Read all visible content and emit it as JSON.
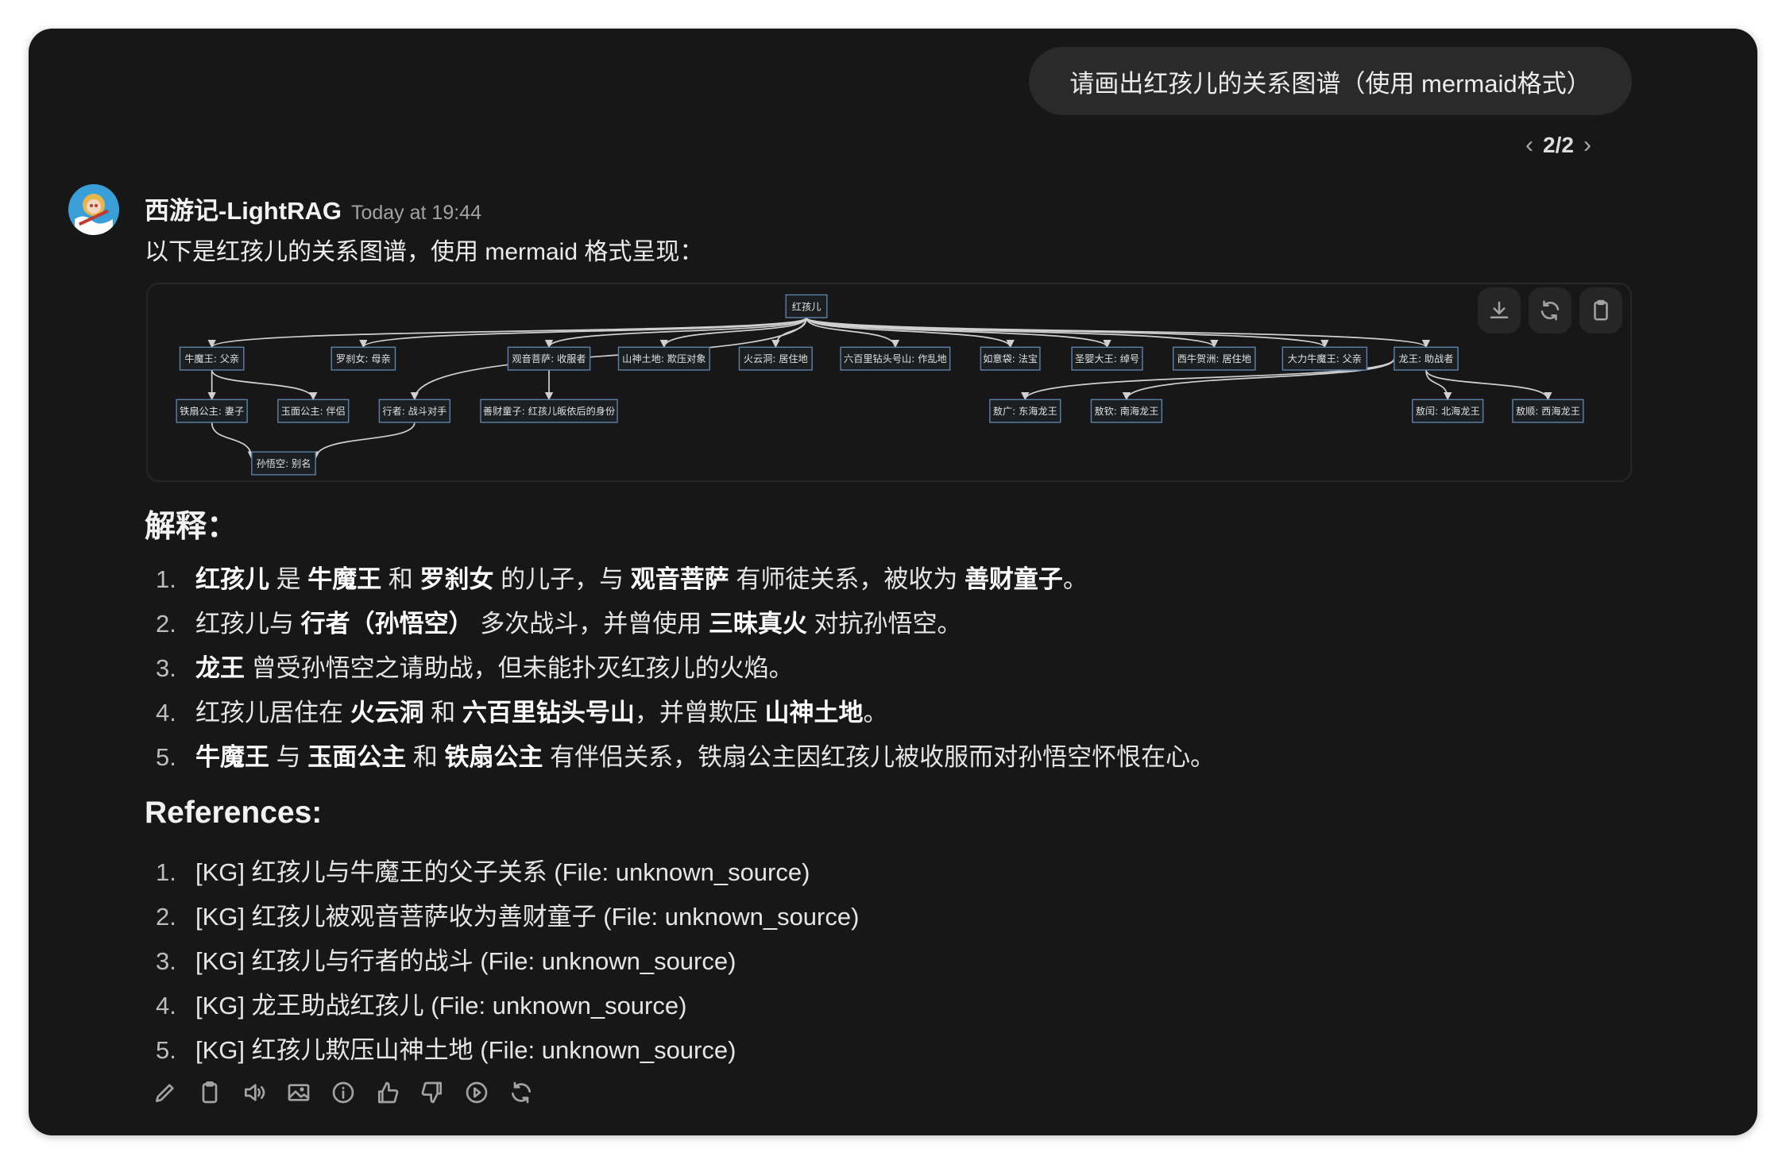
{
  "user_message": "请画出红孩儿的关系图谱（使用 mermaid格式）",
  "pager": {
    "current": "2/2"
  },
  "assistant": {
    "name": "西游记-LightRAG",
    "time": "Today at 19:44",
    "intro": "以下是红孩儿的关系图谱，使用 mermaid 格式呈现："
  },
  "diagram": {
    "nodes": [
      "红孩儿",
      "牛魔王: 父亲",
      "罗刹女: 母亲",
      "观音菩萨: 收服者",
      "山神土地: 欺压对象",
      "火云洞: 居住地",
      "六百里钻头号山: 作乱地",
      "如意袋: 法宝",
      "圣婴大王: 绰号",
      "西牛贺洲: 居住地",
      "大力牛魔王: 父亲",
      "龙王: 助战者",
      "铁扇公主: 妻子",
      "玉面公主: 伴侣",
      "行者: 战斗对手",
      "善财童子: 红孩儿皈依后的身份",
      "敖广: 东海龙王",
      "敖钦: 南海龙王",
      "敖闰: 北海龙王",
      "敖顺: 西海龙王",
      "孙悟空: 别名"
    ],
    "edges": [
      [
        0,
        1
      ],
      [
        0,
        2
      ],
      [
        0,
        3
      ],
      [
        0,
        4
      ],
      [
        0,
        5
      ],
      [
        0,
        6
      ],
      [
        0,
        7
      ],
      [
        0,
        8
      ],
      [
        0,
        9
      ],
      [
        0,
        10
      ],
      [
        0,
        11
      ],
      [
        0,
        14
      ],
      [
        1,
        12
      ],
      [
        1,
        13
      ],
      [
        3,
        15
      ],
      [
        12,
        20
      ],
      [
        14,
        20
      ],
      [
        11,
        16
      ],
      [
        11,
        17
      ],
      [
        11,
        18
      ],
      [
        11,
        19
      ]
    ],
    "buttons": [
      "download-icon",
      "refresh-icon",
      "clipboard-icon"
    ],
    "node_border": "#5b7fa6",
    "edge_color": "#d0d0d0"
  },
  "explanation": {
    "title": "解释：",
    "items": [
      [
        {
          "t": "红孩儿",
          "b": true
        },
        {
          "t": " 是 "
        },
        {
          "t": "牛魔王",
          "b": true
        },
        {
          "t": " 和 "
        },
        {
          "t": "罗刹女",
          "b": true
        },
        {
          "t": " 的儿子，与 "
        },
        {
          "t": "观音菩萨",
          "b": true
        },
        {
          "t": " 有师徒关系，被收为 "
        },
        {
          "t": "善财童子",
          "b": true
        },
        {
          "t": "。"
        }
      ],
      [
        {
          "t": "红孩儿与 "
        },
        {
          "t": "行者（孙悟空）",
          "b": true
        },
        {
          "t": " 多次战斗，并曾使用 "
        },
        {
          "t": "三昧真火",
          "b": true
        },
        {
          "t": " 对抗孙悟空。"
        }
      ],
      [
        {
          "t": "龙王",
          "b": true
        },
        {
          "t": " 曾受孙悟空之请助战，但未能扑灭红孩儿的火焰。"
        }
      ],
      [
        {
          "t": "红孩儿居住在 "
        },
        {
          "t": "火云洞",
          "b": true
        },
        {
          "t": " 和 "
        },
        {
          "t": "六百里钻头号山",
          "b": true
        },
        {
          "t": "，并曾欺压 "
        },
        {
          "t": "山神土地",
          "b": true
        },
        {
          "t": "。"
        }
      ],
      [
        {
          "t": "牛魔王",
          "b": true
        },
        {
          "t": " 与 "
        },
        {
          "t": "玉面公主",
          "b": true
        },
        {
          "t": " 和 "
        },
        {
          "t": "铁扇公主",
          "b": true
        },
        {
          "t": " 有伴侣关系，铁扇公主因红孩儿被收服而对孙悟空怀恨在心。"
        }
      ]
    ]
  },
  "references": {
    "title": "References:",
    "items": [
      "[KG] 红孩儿与牛魔王的父子关系 (File: unknown_source)",
      "[KG] 红孩儿被观音菩萨收为善财童子 (File: unknown_source)",
      "[KG] 红孩儿与行者的战斗 (File: unknown_source)",
      "[KG] 龙王助战红孩儿 (File: unknown_source)",
      "[KG] 红孩儿欺压山神土地 (File: unknown_source)"
    ]
  },
  "actions": [
    "edit-icon",
    "copy-icon",
    "read-aloud-icon",
    "image-icon",
    "info-icon",
    "thumbs-up-icon",
    "thumbs-down-icon",
    "play-icon",
    "regenerate-icon"
  ]
}
